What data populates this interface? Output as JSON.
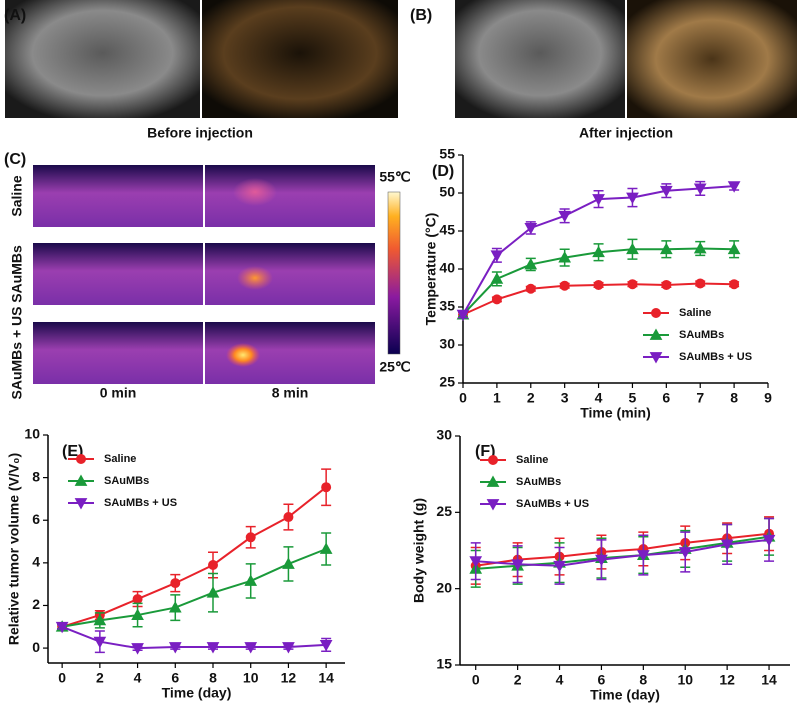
{
  "figure": {
    "panel_a": "(A)",
    "caption_a": "Before injection",
    "panel_b": "(B)",
    "caption_b": "After injection",
    "panel_c": "(C)",
    "rows": [
      "Saline",
      "SAuMBs",
      "SAuMBs + US"
    ],
    "columns": [
      "0 min",
      "8 min"
    ],
    "colorbar": [
      "55℃",
      "25℃"
    ]
  },
  "chart_data": [
    {
      "type": "line",
      "panel": "(D)",
      "x_label": "Time (min)",
      "y_label": "Temperature (°C)",
      "x": [
        0,
        1,
        2,
        3,
        4,
        5,
        6,
        7,
        8
      ],
      "xlim": [
        0,
        9
      ],
      "xticks": [
        0,
        1,
        2,
        3,
        4,
        5,
        6,
        7,
        8,
        9
      ],
      "ylim": [
        25,
        55
      ],
      "yticks": [
        25,
        30,
        35,
        40,
        45,
        50,
        55
      ],
      "grid": false,
      "legend": "lower right",
      "series": [
        {
          "name": "Saline",
          "color": "#e8222a",
          "marker": "o",
          "values": [
            34,
            36,
            37.4,
            37.8,
            37.9,
            38,
            37.9,
            38.1,
            38
          ],
          "errors": [
            0.3,
            0.3,
            0.3,
            0.3,
            0.3,
            0.3,
            0.3,
            0.3,
            0.3
          ]
        },
        {
          "name": "SAuMBs",
          "color": "#1a9a3a",
          "marker": "^",
          "values": [
            34,
            38.7,
            40.6,
            41.5,
            42.2,
            42.6,
            42.6,
            42.7,
            42.6
          ],
          "errors": [
            0.4,
            0.9,
            0.8,
            1.1,
            1.1,
            1.3,
            1.1,
            0.9,
            1.1
          ]
        },
        {
          "name": "SAuMBs + US",
          "color": "#7a1fc2",
          "marker": "v",
          "values": [
            34,
            41.8,
            45.4,
            47,
            49.2,
            49.4,
            50.3,
            50.6,
            50.9
          ],
          "errors": [
            0.4,
            0.9,
            0.8,
            0.9,
            1.1,
            1.2,
            0.9,
            0.9,
            0.5
          ]
        }
      ]
    },
    {
      "type": "line",
      "panel": "(E)",
      "x_label": "Time (day)",
      "y_label": "Relative tumor volume (V/V₀)",
      "x": [
        0,
        2,
        4,
        6,
        8,
        10,
        12,
        14
      ],
      "xlim": [
        -0.75,
        15
      ],
      "xticks": [
        0,
        2,
        4,
        6,
        8,
        10,
        12,
        14
      ],
      "ylim": [
        -0.7,
        10
      ],
      "yticks": [
        0,
        2,
        4,
        6,
        8,
        10
      ],
      "grid": false,
      "legend": "upper left",
      "series": [
        {
          "name": "Saline",
          "color": "#e8222a",
          "marker": "o",
          "values": [
            1,
            1.55,
            2.3,
            3.05,
            3.9,
            5.2,
            6.15,
            7.55
          ],
          "errors": [
            0.1,
            0.2,
            0.35,
            0.4,
            0.6,
            0.5,
            0.6,
            0.85
          ]
        },
        {
          "name": "SAuMBs",
          "color": "#1a9a3a",
          "marker": "^",
          "values": [
            1,
            1.3,
            1.55,
            1.9,
            2.6,
            3.15,
            3.95,
            4.65
          ],
          "errors": [
            0.1,
            0.35,
            0.55,
            0.6,
            0.9,
            0.8,
            0.8,
            0.75
          ]
        },
        {
          "name": "SAuMBs + US",
          "color": "#7a1fc2",
          "marker": "v",
          "values": [
            1,
            0.3,
            0,
            0.05,
            0.05,
            0.05,
            0.05,
            0.15
          ],
          "errors": [
            0.1,
            0.5,
            0.1,
            0.1,
            0.1,
            0.1,
            0.1,
            0.3
          ]
        }
      ]
    },
    {
      "type": "line",
      "panel": "(F)",
      "x_label": "Time (day)",
      "y_label": "Body weight (g)",
      "x": [
        0,
        2,
        4,
        6,
        8,
        10,
        12,
        14
      ],
      "xlim": [
        -0.75,
        15
      ],
      "xticks": [
        0,
        2,
        4,
        6,
        8,
        10,
        12,
        14
      ],
      "ylim": [
        15,
        30
      ],
      "yticks": [
        15,
        20,
        25,
        30
      ],
      "grid": false,
      "legend": "upper left",
      "series": [
        {
          "name": "Saline",
          "color": "#e8222a",
          "marker": "o",
          "values": [
            21.5,
            21.9,
            22.1,
            22.4,
            22.6,
            23,
            23.3,
            23.6
          ],
          "errors": [
            1.2,
            1.1,
            1.2,
            1.1,
            1.1,
            1.1,
            1,
            1.1
          ]
        },
        {
          "name": "SAuMBs",
          "color": "#1a9a3a",
          "marker": "^",
          "values": [
            21.3,
            21.5,
            21.7,
            22,
            22.2,
            22.6,
            23,
            23.4
          ],
          "errors": [
            1.2,
            1.2,
            1.3,
            1.3,
            1.2,
            1.2,
            1.2,
            1.2
          ]
        },
        {
          "name": "SAuMBs + US",
          "color": "#7a1fc2",
          "marker": "v",
          "values": [
            21.8,
            21.6,
            21.5,
            21.9,
            22.2,
            22.4,
            22.9,
            23.2
          ],
          "errors": [
            1.2,
            1.2,
            1.2,
            1.3,
            1.3,
            1.3,
            1.3,
            1.4
          ]
        }
      ]
    }
  ]
}
